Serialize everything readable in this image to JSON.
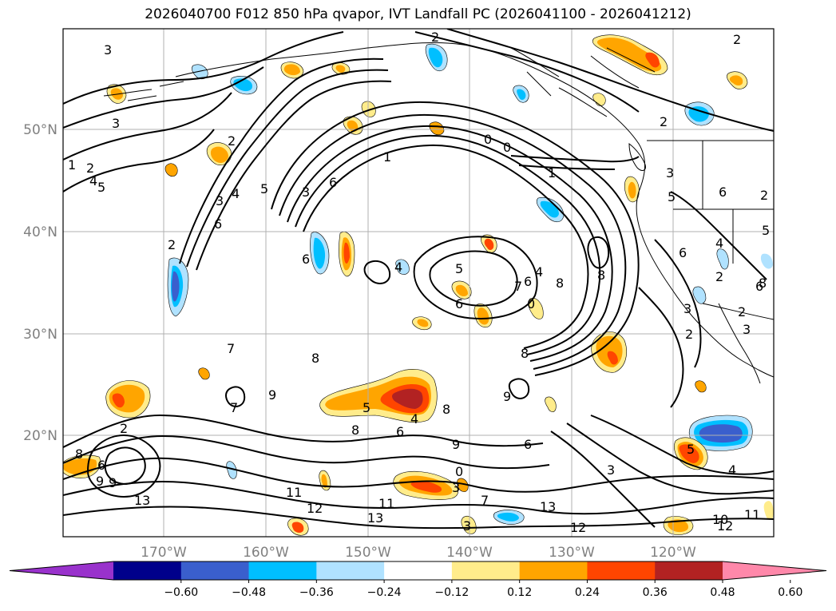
{
  "title": "2026040700 F012 850 hPa qvapor, IVT Landfall PC (2026041100 - 2026041212)",
  "lat_labels": [
    "50°N",
    "40°N",
    "30°N",
    "20°N"
  ],
  "lon_labels": [
    "170°W",
    "160°W",
    "150°W",
    "140°W",
    "130°W",
    "120°W"
  ],
  "colorbar": {
    "ticks": [
      "−0.60",
      "−0.48",
      "−0.36",
      "−0.24",
      "−0.12",
      "0.12",
      "0.24",
      "0.36",
      "0.48",
      "0.60"
    ],
    "colors": [
      "#9932cc",
      "#00008b",
      "#3a5fcd",
      "#00bfff",
      "#b0e2ff",
      "#ffffff",
      "#ffec8b",
      "#ffa500",
      "#ff4500",
      "#b22222",
      "#ff88aa"
    ]
  },
  "contour_labels": [
    "3",
    "3",
    "2",
    "2",
    "2",
    "1",
    "2",
    "4",
    "5",
    "2",
    "3",
    "4",
    "5",
    "3",
    "6",
    "6",
    "0",
    "0",
    "1",
    "1",
    "6",
    "5",
    "2",
    "6",
    "6",
    "8",
    "4",
    "5",
    "7",
    "6",
    "8",
    "8",
    "7",
    "4",
    "9",
    "8",
    "7",
    "9",
    "0",
    "8",
    "6",
    "2",
    "9",
    "5",
    "4",
    "6",
    "8",
    "3",
    "6",
    "9",
    "3",
    "3",
    "5",
    "4",
    "2",
    "9",
    "8",
    "11",
    "12",
    "11",
    "13",
    "13",
    "12",
    "10",
    "11",
    "12",
    "13",
    "3",
    "2",
    "5",
    "6",
    "4",
    "2",
    "3",
    "2",
    "6",
    "8",
    "0",
    "7",
    "3"
  ],
  "features": {
    "ocean": "North Pacific",
    "coast": "North America west coast"
  }
}
